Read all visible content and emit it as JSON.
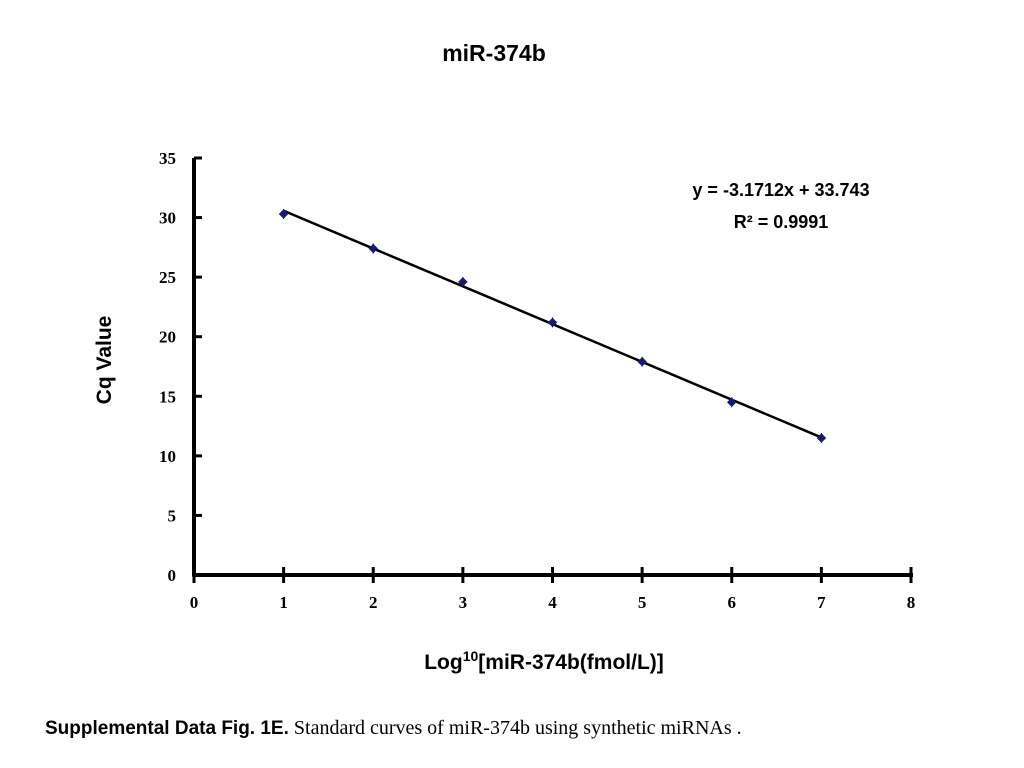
{
  "chart_data": {
    "type": "scatter",
    "title": "miR-374b",
    "xlabel_base": "Log",
    "xlabel_sup": "10",
    "xlabel_rest": "[miR-374b(fmol/L)]",
    "ylabel": "Cq Value",
    "xlim": [
      0,
      8
    ],
    "ylim": [
      0,
      35
    ],
    "x_ticks": [
      0,
      1,
      2,
      3,
      4,
      5,
      6,
      7,
      8
    ],
    "y_ticks": [
      0,
      5,
      10,
      15,
      20,
      25,
      30,
      35
    ],
    "grid": false,
    "series": [
      {
        "x": [
          1,
          2,
          3,
          4,
          5,
          6,
          7
        ],
        "y": [
          30.3,
          27.4,
          24.6,
          21.2,
          17.9,
          14.5,
          11.5
        ],
        "marker_color": "#1a1a6e"
      }
    ],
    "trendline": {
      "slope": -3.1712,
      "intercept": 33.743,
      "x_range": [
        1,
        7
      ],
      "color": "#000000"
    },
    "annotations": {
      "equation": "y = -3.1712x + 33.743",
      "r_squared": "R² = 0.9991"
    }
  },
  "caption": {
    "bold": "Supplemental Data Fig. 1E.",
    "text": " Standard curves of miR-374b using synthetic miRNAs ."
  }
}
